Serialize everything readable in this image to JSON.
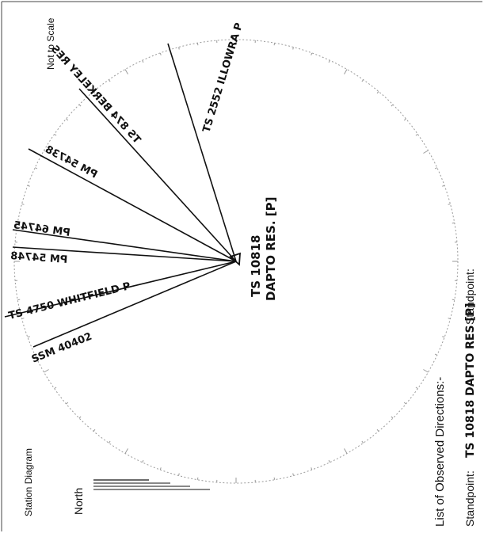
{
  "document": {
    "scale_note": "Not to Scale",
    "diagram_title": "Station Diagram",
    "north_label": "North",
    "list_heading": "List of Observed Directions:-",
    "standpoint_label": "Standpoint:",
    "standpoint_value": "TS 10818 DAPTO RES [P]",
    "standpoint_label_2": "Standpoint:"
  },
  "station": {
    "name_line1": "TS 10818",
    "name_line2": "DAPTO RES. [P]"
  },
  "directions": [
    {
      "label": "TS 2552 ILLOWRA P"
    },
    {
      "label": "TS 874 BERKELEY RES"
    },
    {
      "label": "PM 54738"
    },
    {
      "label": "PM 64745"
    },
    {
      "label": "PM 54748"
    },
    {
      "label": "TS 4750 WHITFIELD P"
    },
    {
      "label": "SSM 40402"
    }
  ]
}
